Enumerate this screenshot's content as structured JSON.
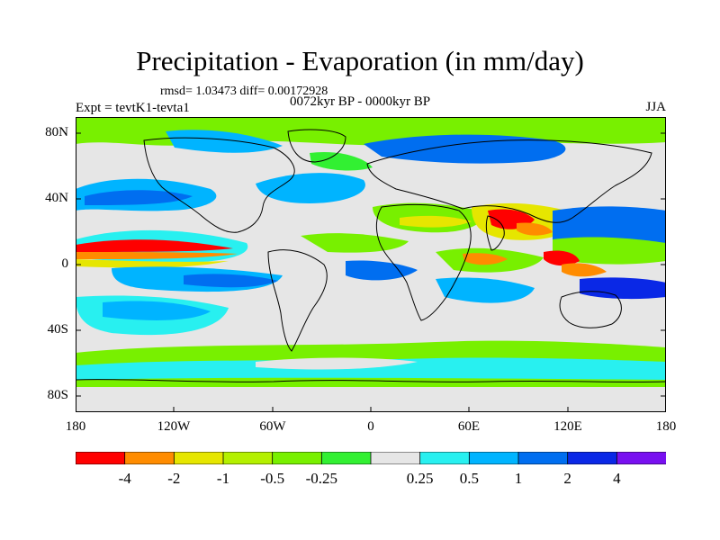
{
  "title": "Precipitation - Evaporation (in mm/day)",
  "stats": "rmsd= 1.03473 diff= 0.00172928",
  "experiment": "Expt = tevtK1-tevta1",
  "period": "0072kyr BP - 0000kyr BP",
  "season": "JJA",
  "lat_labels": [
    "80N",
    "40N",
    "0",
    "40S",
    "80S"
  ],
  "lon_labels": [
    "180",
    "120W",
    "60W",
    "0",
    "60E",
    "120E",
    "180"
  ],
  "colorbar": {
    "colors": [
      "#ff0000",
      "#ff8c00",
      "#e6e600",
      "#b4f000",
      "#78f000",
      "#32f032",
      "#e6e6e6",
      "#28f0f0",
      "#00b4ff",
      "#006ef0",
      "#0a28e6",
      "#7810f0"
    ],
    "labels": [
      "-4",
      "-2",
      "-1",
      "-0.5",
      "-0.25",
      "0.25",
      "0.5",
      "1",
      "2",
      "4"
    ]
  }
}
